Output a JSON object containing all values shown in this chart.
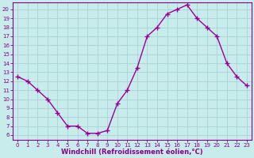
{
  "x": [
    0,
    1,
    2,
    3,
    4,
    5,
    6,
    7,
    8,
    9,
    10,
    11,
    12,
    13,
    14,
    15,
    16,
    17,
    18,
    19,
    20,
    21,
    22,
    23
  ],
  "y": [
    12.5,
    12,
    11,
    10,
    8.5,
    7,
    7,
    6.2,
    6.2,
    6.5,
    9.5,
    11,
    13.5,
    17,
    18,
    19.5,
    20,
    20.5,
    19,
    18,
    17,
    14,
    12.5,
    11.5
  ],
  "line_color": "#990099",
  "marker": "+",
  "bg_color": "#c8ecec",
  "grid_color": "#a8d4d4",
  "xlabel": "Windchill (Refroidissement éolien,°C)",
  "xlim": [
    -0.5,
    23.5
  ],
  "ylim": [
    5.5,
    20.8
  ],
  "yticks": [
    6,
    7,
    8,
    9,
    10,
    11,
    12,
    13,
    14,
    15,
    16,
    17,
    18,
    19,
    20
  ],
  "xticks": [
    0,
    1,
    2,
    3,
    4,
    5,
    6,
    7,
    8,
    9,
    10,
    11,
    12,
    13,
    14,
    15,
    16,
    17,
    18,
    19,
    20,
    21,
    22,
    23
  ],
  "tick_color": "#880088",
  "label_color": "#880088",
  "axis_color": "#880088",
  "line_width": 1.0,
  "marker_size": 4,
  "tick_fontsize": 5.0,
  "xlabel_fontsize": 6.0
}
